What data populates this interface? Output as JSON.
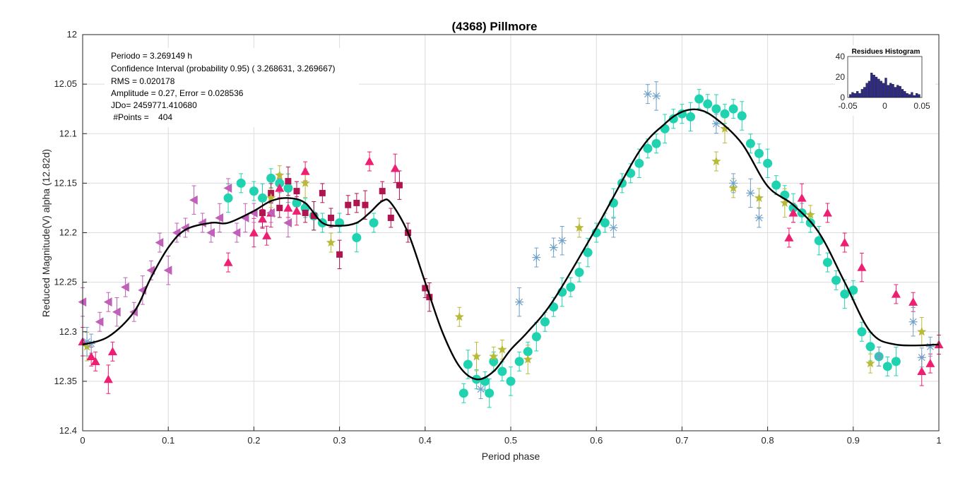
{
  "chart_data": {
    "type": "scatter",
    "title": "(4368) Pillmore",
    "xlabel": "Period phase",
    "ylabel": "Reduced Magnitude(V) alpha (12.82d)",
    "xlim": [
      0,
      1
    ],
    "ylim": [
      12,
      12.4
    ],
    "y_reversed": true,
    "grid": true,
    "x_ticks": [
      "0",
      "0.1",
      "0.2",
      "0.3",
      "0.4",
      "0.5",
      "0.6",
      "0.7",
      "0.8",
      "0.9",
      "1"
    ],
    "y_ticks": [
      "12",
      "12.05",
      "12.1",
      "12.15",
      "12.2",
      "12.25",
      "12.3",
      "12.35",
      "12.4"
    ],
    "info_lines": [
      "Periodo =  3.269149 h",
      "Confidence Interval (probability 0.95) ( 3.268631,  3.269667)",
      "RMS = 0.020178",
      "Amplitude = 0.27, Error =   0.028536",
      "JDo= 2459771.410680",
      " #Points =    404"
    ],
    "fit_curve": {
      "color": "#000000",
      "points": [
        [
          0,
          12.313
        ],
        [
          0.03,
          12.305
        ],
        [
          0.06,
          12.28
        ],
        [
          0.08,
          12.245
        ],
        [
          0.1,
          12.215
        ],
        [
          0.12,
          12.197
        ],
        [
          0.15,
          12.19
        ],
        [
          0.17,
          12.19
        ],
        [
          0.2,
          12.178
        ],
        [
          0.22,
          12.168
        ],
        [
          0.24,
          12.165
        ],
        [
          0.26,
          12.17
        ],
        [
          0.28,
          12.19
        ],
        [
          0.3,
          12.193
        ],
        [
          0.32,
          12.19
        ],
        [
          0.335,
          12.18
        ],
        [
          0.35,
          12.168
        ],
        [
          0.36,
          12.17
        ],
        [
          0.38,
          12.2
        ],
        [
          0.4,
          12.25
        ],
        [
          0.42,
          12.3
        ],
        [
          0.44,
          12.335
        ],
        [
          0.46,
          12.348
        ],
        [
          0.48,
          12.34
        ],
        [
          0.5,
          12.318
        ],
        [
          0.52,
          12.3
        ],
        [
          0.55,
          12.268
        ],
        [
          0.6,
          12.195
        ],
        [
          0.65,
          12.118
        ],
        [
          0.68,
          12.09
        ],
        [
          0.7,
          12.078
        ],
        [
          0.72,
          12.076
        ],
        [
          0.74,
          12.085
        ],
        [
          0.77,
          12.11
        ],
        [
          0.8,
          12.153
        ],
        [
          0.83,
          12.172
        ],
        [
          0.86,
          12.2
        ],
        [
          0.89,
          12.25
        ],
        [
          0.92,
          12.3
        ],
        [
          0.95,
          12.313
        ],
        [
          1.0,
          12.313
        ]
      ]
    },
    "series": [
      {
        "name": "",
        "marker": "circle",
        "color": "#1fd3b0",
        "points": [
          [
            0.17,
            12.165
          ],
          [
            0.185,
            12.15
          ],
          [
            0.2,
            12.158
          ],
          [
            0.21,
            12.165
          ],
          [
            0.22,
            12.145
          ],
          [
            0.23,
            12.15
          ],
          [
            0.24,
            12.155
          ],
          [
            0.25,
            12.17
          ],
          [
            0.26,
            12.175
          ],
          [
            0.27,
            12.183
          ],
          [
            0.28,
            12.19
          ],
          [
            0.3,
            12.19
          ],
          [
            0.32,
            12.205
          ],
          [
            0.34,
            12.19
          ],
          [
            0.445,
            12.362
          ],
          [
            0.45,
            12.333
          ],
          [
            0.46,
            12.348
          ],
          [
            0.47,
            12.35
          ],
          [
            0.475,
            12.362
          ],
          [
            0.48,
            12.33
          ],
          [
            0.49,
            12.34
          ],
          [
            0.5,
            12.35
          ],
          [
            0.51,
            12.33
          ],
          [
            0.52,
            12.32
          ],
          [
            0.53,
            12.305
          ],
          [
            0.54,
            12.29
          ],
          [
            0.55,
            12.275
          ],
          [
            0.56,
            12.26
          ],
          [
            0.57,
            12.255
          ],
          [
            0.58,
            12.24
          ],
          [
            0.59,
            12.22
          ],
          [
            0.6,
            12.2
          ],
          [
            0.61,
            12.19
          ],
          [
            0.62,
            12.17
          ],
          [
            0.63,
            12.15
          ],
          [
            0.64,
            12.14
          ],
          [
            0.65,
            12.13
          ],
          [
            0.66,
            12.115
          ],
          [
            0.67,
            12.11
          ],
          [
            0.68,
            12.095
          ],
          [
            0.69,
            12.085
          ],
          [
            0.7,
            12.08
          ],
          [
            0.71,
            12.083
          ],
          [
            0.72,
            12.065
          ],
          [
            0.73,
            12.07
          ],
          [
            0.74,
            12.075
          ],
          [
            0.75,
            12.08
          ],
          [
            0.76,
            12.075
          ],
          [
            0.77,
            12.082
          ],
          [
            0.78,
            12.11
          ],
          [
            0.79,
            12.12
          ],
          [
            0.8,
            12.13
          ],
          [
            0.81,
            12.152
          ],
          [
            0.82,
            12.162
          ],
          [
            0.83,
            12.175
          ],
          [
            0.84,
            12.18
          ],
          [
            0.85,
            12.19
          ],
          [
            0.86,
            12.208
          ],
          [
            0.87,
            12.23
          ],
          [
            0.88,
            12.248
          ],
          [
            0.89,
            12.262
          ],
          [
            0.9,
            12.258
          ],
          [
            0.91,
            12.3
          ],
          [
            0.92,
            12.315
          ],
          [
            0.93,
            12.325
          ],
          [
            0.94,
            12.335
          ],
          [
            0.95,
            12.33
          ]
        ]
      },
      {
        "name": "",
        "marker": "triangle-up",
        "color": "#ee1e72",
        "points": [
          [
            0.0,
            12.31
          ],
          [
            0.01,
            12.325
          ],
          [
            0.015,
            12.33
          ],
          [
            0.03,
            12.348
          ],
          [
            0.035,
            12.32
          ],
          [
            0.17,
            12.23
          ],
          [
            0.2,
            12.2
          ],
          [
            0.21,
            12.186
          ],
          [
            0.215,
            12.203
          ],
          [
            0.22,
            12.18
          ],
          [
            0.23,
            12.155
          ],
          [
            0.24,
            12.175
          ],
          [
            0.25,
            12.178
          ],
          [
            0.26,
            12.138
          ],
          [
            0.335,
            12.128
          ],
          [
            0.365,
            12.135
          ],
          [
            0.825,
            12.205
          ],
          [
            0.83,
            12.18
          ],
          [
            0.84,
            12.165
          ],
          [
            0.87,
            12.18
          ],
          [
            0.89,
            12.21
          ],
          [
            0.91,
            12.235
          ],
          [
            0.95,
            12.262
          ],
          [
            0.97,
            12.27
          ],
          [
            0.98,
            12.34
          ],
          [
            0.99,
            12.332
          ],
          [
            1.0,
            12.313
          ]
        ]
      },
      {
        "name": "",
        "marker": "triangle-left",
        "color": "#c060b8",
        "points": [
          [
            0.0,
            12.27
          ],
          [
            0.02,
            12.29
          ],
          [
            0.03,
            12.27
          ],
          [
            0.04,
            12.28
          ],
          [
            0.05,
            12.255
          ],
          [
            0.06,
            12.28
          ],
          [
            0.07,
            12.258
          ],
          [
            0.08,
            12.238
          ],
          [
            0.09,
            12.21
          ],
          [
            0.1,
            12.238
          ],
          [
            0.11,
            12.2
          ],
          [
            0.12,
            12.195
          ],
          [
            0.13,
            12.167
          ],
          [
            0.14,
            12.19
          ],
          [
            0.15,
            12.2
          ],
          [
            0.16,
            12.185
          ],
          [
            0.17,
            12.155
          ],
          [
            0.18,
            12.2
          ],
          [
            0.19,
            12.185
          ],
          [
            0.2,
            12.18
          ],
          [
            0.22,
            12.18
          ],
          [
            0.24,
            12.19
          ]
        ]
      },
      {
        "name": "",
        "marker": "square",
        "color": "#b0154f",
        "points": [
          [
            0.21,
            12.18
          ],
          [
            0.22,
            12.16
          ],
          [
            0.23,
            12.175
          ],
          [
            0.24,
            12.148
          ],
          [
            0.25,
            12.158
          ],
          [
            0.26,
            12.18
          ],
          [
            0.27,
            12.183
          ],
          [
            0.28,
            12.16
          ],
          [
            0.29,
            12.185
          ],
          [
            0.3,
            12.222
          ],
          [
            0.31,
            12.172
          ],
          [
            0.32,
            12.17
          ],
          [
            0.33,
            12.172
          ],
          [
            0.35,
            12.158
          ],
          [
            0.36,
            12.185
          ],
          [
            0.37,
            12.152
          ],
          [
            0.38,
            12.2
          ],
          [
            0.4,
            12.256
          ],
          [
            0.405,
            12.265
          ]
        ]
      },
      {
        "name": "",
        "marker": "star",
        "color": "#b8bb3a",
        "points": [
          [
            0.005,
            12.315
          ],
          [
            0.22,
            12.165
          ],
          [
            0.23,
            12.142
          ],
          [
            0.26,
            12.15
          ],
          [
            0.29,
            12.21
          ],
          [
            0.44,
            12.285
          ],
          [
            0.46,
            12.325
          ],
          [
            0.48,
            12.325
          ],
          [
            0.49,
            12.318
          ],
          [
            0.52,
            12.328
          ],
          [
            0.58,
            12.195
          ],
          [
            0.74,
            12.128
          ],
          [
            0.75,
            12.095
          ],
          [
            0.76,
            12.155
          ],
          [
            0.79,
            12.165
          ],
          [
            0.82,
            12.17
          ],
          [
            0.85,
            12.182
          ],
          [
            0.92,
            12.332
          ],
          [
            0.98,
            12.3
          ]
        ]
      },
      {
        "name": "",
        "marker": "asterisk",
        "color": "#6fa0c8",
        "points": [
          [
            0.005,
            12.31
          ],
          [
            0.01,
            12.312
          ],
          [
            0.465,
            12.358
          ],
          [
            0.51,
            12.27
          ],
          [
            0.53,
            12.225
          ],
          [
            0.55,
            12.215
          ],
          [
            0.56,
            12.208
          ],
          [
            0.62,
            12.195
          ],
          [
            0.66,
            12.06
          ],
          [
            0.67,
            12.062
          ],
          [
            0.74,
            12.09
          ],
          [
            0.76,
            12.15
          ],
          [
            0.78,
            12.16
          ],
          [
            0.79,
            12.185
          ],
          [
            0.93,
            12.325
          ],
          [
            0.97,
            12.29
          ],
          [
            0.98,
            12.326
          ],
          [
            0.99,
            12.315
          ]
        ]
      }
    ],
    "histogram": {
      "title": "Residues Histogram",
      "xlim": [
        -0.05,
        0.05
      ],
      "ylim": [
        0,
        40
      ],
      "x_ticks": [
        "-0.05",
        "0",
        "0.05"
      ],
      "y_ticks": [
        "0",
        "20",
        "40"
      ],
      "bar_color": "#2e2a8a",
      "counts": [
        3,
        5,
        4,
        6,
        4,
        8,
        10,
        14,
        16,
        24,
        22,
        20,
        18,
        16,
        14,
        19,
        12,
        14,
        13,
        10,
        12,
        11,
        8,
        6,
        4,
        3,
        5,
        2,
        4,
        3
      ]
    }
  }
}
